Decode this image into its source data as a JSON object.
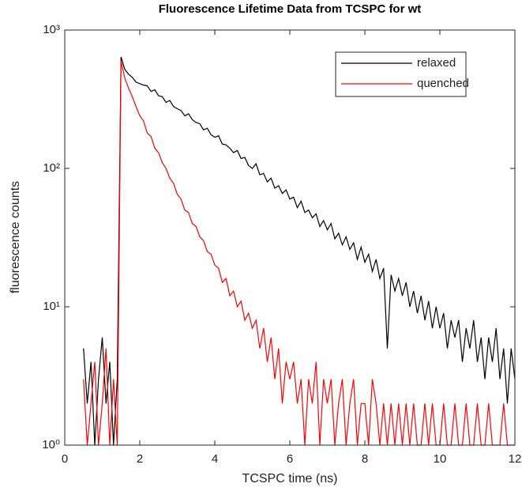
{
  "chart_data": {
    "type": "line",
    "title": "Fluorescence Lifetime Data from TCSPC for wt",
    "x_label": "TCSPC time (ns)",
    "y_label": "fluorescence counts",
    "x": [
      0.5,
      0.6,
      0.7,
      0.8,
      0.9,
      1.0,
      1.1,
      1.2,
      1.3,
      1.4,
      1.5,
      1.6,
      1.7,
      1.8,
      1.9,
      2.0,
      2.1,
      2.2,
      2.3,
      2.4,
      2.5,
      2.6,
      2.7,
      2.8,
      2.9,
      3.0,
      3.1,
      3.2,
      3.3,
      3.4,
      3.5,
      3.6,
      3.7,
      3.8,
      3.9,
      4.0,
      4.1,
      4.2,
      4.3,
      4.4,
      4.5,
      4.6,
      4.7,
      4.8,
      4.9,
      5.0,
      5.1,
      5.2,
      5.3,
      5.4,
      5.5,
      5.6,
      5.7,
      5.8,
      5.9,
      6.0,
      6.1,
      6.2,
      6.3,
      6.4,
      6.5,
      6.6,
      6.7,
      6.8,
      6.9,
      7.0,
      7.1,
      7.2,
      7.3,
      7.4,
      7.5,
      7.6,
      7.7,
      7.8,
      7.9,
      8.0,
      8.1,
      8.2,
      8.3,
      8.4,
      8.5,
      8.6,
      8.7,
      8.8,
      8.9,
      9.0,
      9.1,
      9.2,
      9.3,
      9.4,
      9.5,
      9.6,
      9.7,
      9.8,
      9.9,
      10.0,
      10.1,
      10.2,
      10.3,
      10.4,
      10.5,
      10.6,
      10.7,
      10.8,
      10.9,
      11.0,
      11.1,
      11.2,
      11.3,
      11.4,
      11.5,
      11.6,
      11.7,
      11.8,
      11.9,
      12.0
    ],
    "series": [
      {
        "name": "relaxed",
        "color": "#000000",
        "values": [
          5,
          2,
          4,
          1,
          3,
          6,
          2,
          4,
          1,
          3,
          640,
          520,
          480,
          455,
          420,
          410,
          400,
          395,
          360,
          370,
          335,
          330,
          300,
          310,
          280,
          270,
          262,
          240,
          248,
          225,
          215,
          210,
          190,
          195,
          175,
          168,
          172,
          150,
          148,
          140,
          130,
          135,
          118,
          120,
          105,
          100,
          108,
          90,
          92,
          80,
          85,
          72,
          75,
          66,
          70,
          60,
          62,
          52,
          58,
          48,
          50,
          44,
          47,
          38,
          42,
          36,
          40,
          31,
          34,
          28,
          32,
          26,
          29,
          22,
          27,
          21,
          24,
          18,
          22,
          16,
          19,
          5,
          17,
          13,
          16,
          12,
          15,
          10,
          13,
          9,
          12,
          8,
          11,
          7,
          10,
          7,
          9,
          5,
          8,
          6,
          8,
          4,
          7,
          5,
          8,
          4,
          6,
          3,
          6,
          4,
          7,
          3,
          5,
          2,
          5,
          3
        ]
      },
      {
        "name": "quenched",
        "color": "#ff0000",
        "values": [
          3,
          1,
          2,
          4,
          1,
          2,
          5,
          1,
          3,
          1,
          600,
          450,
          380,
          330,
          280,
          240,
          220,
          180,
          170,
          140,
          130,
          110,
          100,
          85,
          78,
          65,
          60,
          50,
          48,
          40,
          38,
          32,
          30,
          25,
          24,
          20,
          19,
          15,
          16,
          12,
          13,
          10,
          11,
          8,
          9,
          7,
          8,
          5,
          7,
          4,
          6,
          3,
          5,
          2,
          4,
          3,
          4,
          2,
          3,
          1,
          3,
          2,
          4,
          1,
          3,
          2,
          3,
          1,
          2,
          3,
          1,
          2,
          3,
          1,
          2,
          2,
          1,
          3,
          2,
          1,
          2,
          1,
          2,
          1,
          2,
          1,
          2,
          1,
          2,
          1,
          1,
          2,
          1,
          2,
          1,
          1,
          2,
          1,
          1,
          2,
          1,
          1,
          2,
          1,
          1,
          2,
          1,
          1,
          2,
          1,
          1,
          1,
          2,
          1,
          1,
          1
        ]
      }
    ],
    "xlim": [
      0,
      12
    ],
    "xticks": [
      0,
      2,
      4,
      6,
      8,
      10,
      12
    ],
    "ylim": [
      1,
      1000
    ],
    "yticks": [
      {
        "value": 1,
        "label": "10⁰"
      },
      {
        "value": 10,
        "label": "10¹"
      },
      {
        "value": 100,
        "label": "10²"
      },
      {
        "value": 1000,
        "label": "10³"
      }
    ],
    "y_scale": "log",
    "grid": false,
    "legend": "northeast"
  }
}
